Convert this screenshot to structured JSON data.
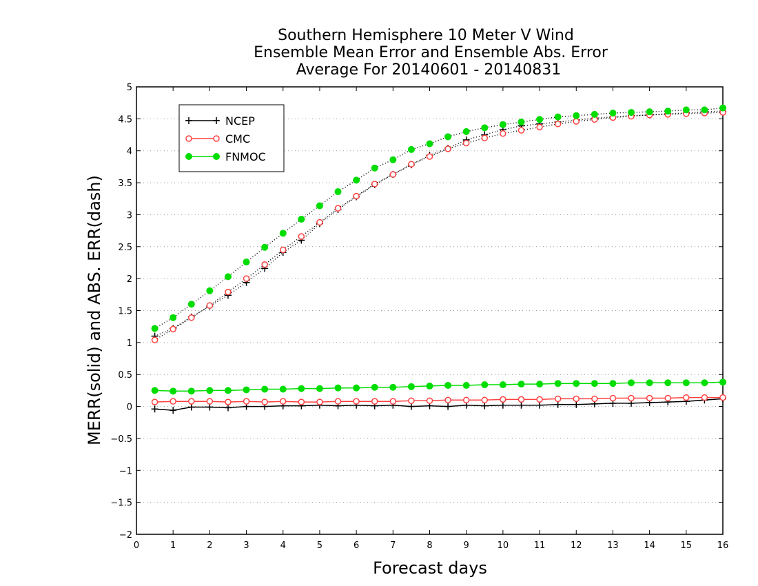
{
  "chart_data": {
    "type": "line",
    "title": [
      "Southern Hemisphere 10 Meter V Wind",
      "Ensemble Mean Error and Ensemble Abs. Error",
      "Average For 20140601 - 20140831"
    ],
    "xlabel": "Forecast days",
    "ylabel": "MERR(solid) and ABS. ERR(dash)",
    "xlim": [
      0,
      16
    ],
    "ylim": [
      -2,
      5
    ],
    "xticks": [
      0,
      1,
      2,
      3,
      4,
      5,
      6,
      7,
      8,
      9,
      10,
      11,
      12,
      13,
      14,
      15,
      16
    ],
    "yticks": [
      -2,
      -1.5,
      -1,
      -0.5,
      0,
      0.5,
      1,
      1.5,
      2,
      2.5,
      3,
      3.5,
      4,
      4.5,
      5
    ],
    "ytick_labels": [
      "−2",
      "−1.5",
      "−1",
      "−0.5",
      "0",
      "0.5",
      "1",
      "1.5",
      "2",
      "2.5",
      "3",
      "3.5",
      "4",
      "4.5",
      "5"
    ],
    "grid": "horizontal dotted",
    "legend_position": "top-left",
    "x": [
      0.5,
      1,
      1.5,
      2,
      2.5,
      3,
      3.5,
      4,
      4.5,
      5,
      5.5,
      6,
      6.5,
      7,
      7.5,
      8,
      8.5,
      9,
      9.5,
      10,
      10.5,
      11,
      11.5,
      12,
      12.5,
      13,
      13.5,
      14,
      14.5,
      15,
      15.5,
      16
    ],
    "series": [
      {
        "name": "NCEP",
        "color": "#000000",
        "marker": "plus",
        "merr": [
          -0.04,
          -0.06,
          -0.01,
          -0.01,
          -0.02,
          0.0,
          0.0,
          0.01,
          0.01,
          0.02,
          0.01,
          0.02,
          0.01,
          0.02,
          0.0,
          0.01,
          0.0,
          0.02,
          0.01,
          0.02,
          0.02,
          0.02,
          0.03,
          0.03,
          0.04,
          0.05,
          0.05,
          0.06,
          0.07,
          0.08,
          0.1,
          0.12
        ],
        "abs_err": [
          1.1,
          1.22,
          1.4,
          1.57,
          1.74,
          1.94,
          2.16,
          2.41,
          2.6,
          2.86,
          3.08,
          3.28,
          3.47,
          3.63,
          3.78,
          3.93,
          4.04,
          4.17,
          4.25,
          4.33,
          4.39,
          4.42,
          4.45,
          4.48,
          4.51,
          4.53,
          4.55,
          4.56,
          4.58,
          4.59,
          4.61,
          4.62
        ]
      },
      {
        "name": "CMC",
        "color": "#ff4040",
        "marker": "open-circle",
        "merr": [
          0.07,
          0.08,
          0.08,
          0.08,
          0.07,
          0.08,
          0.07,
          0.08,
          0.07,
          0.07,
          0.08,
          0.08,
          0.08,
          0.08,
          0.09,
          0.09,
          0.1,
          0.1,
          0.1,
          0.11,
          0.11,
          0.11,
          0.12,
          0.12,
          0.12,
          0.13,
          0.13,
          0.13,
          0.13,
          0.14,
          0.14,
          0.14
        ],
        "abs_err": [
          1.04,
          1.21,
          1.39,
          1.58,
          1.79,
          2.0,
          2.22,
          2.45,
          2.66,
          2.88,
          3.1,
          3.29,
          3.48,
          3.63,
          3.79,
          3.91,
          4.03,
          4.12,
          4.2,
          4.27,
          4.32,
          4.37,
          4.42,
          4.46,
          4.49,
          4.52,
          4.54,
          4.56,
          4.57,
          4.58,
          4.59,
          4.6
        ]
      },
      {
        "name": "FNMOC",
        "color": "#00dd00",
        "marker": "filled-circle",
        "merr": [
          0.25,
          0.24,
          0.24,
          0.25,
          0.25,
          0.26,
          0.27,
          0.27,
          0.28,
          0.28,
          0.29,
          0.29,
          0.3,
          0.3,
          0.31,
          0.32,
          0.33,
          0.33,
          0.34,
          0.34,
          0.35,
          0.35,
          0.36,
          0.36,
          0.36,
          0.36,
          0.37,
          0.37,
          0.37,
          0.37,
          0.37,
          0.38
        ],
        "abs_err": [
          1.22,
          1.39,
          1.6,
          1.81,
          2.03,
          2.26,
          2.49,
          2.71,
          2.93,
          3.14,
          3.36,
          3.54,
          3.73,
          3.86,
          4.02,
          4.11,
          4.22,
          4.3,
          4.36,
          4.41,
          4.45,
          4.49,
          4.53,
          4.55,
          4.57,
          4.59,
          4.6,
          4.61,
          4.62,
          4.64,
          4.64,
          4.67
        ]
      }
    ]
  }
}
